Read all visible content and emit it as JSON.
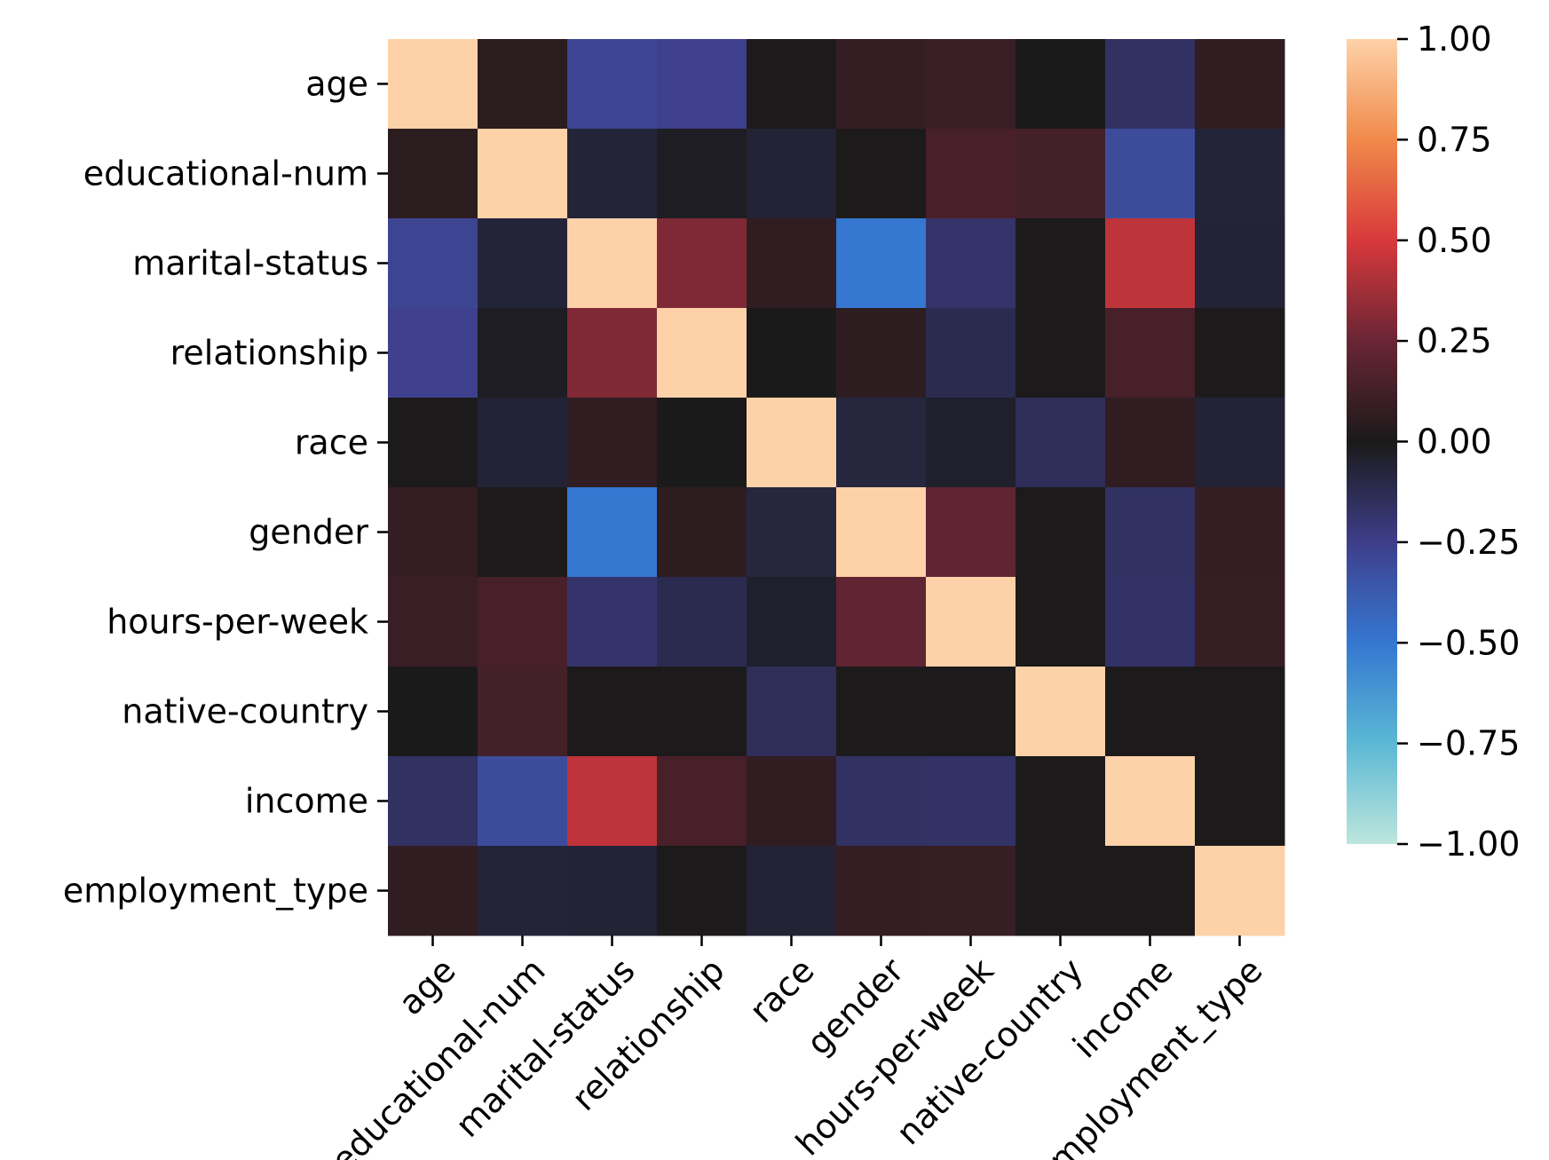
{
  "chart_data": {
    "type": "heatmap",
    "title": "",
    "xlabel": "",
    "ylabel": "",
    "rows": [
      "age",
      "educational-num",
      "marital-status",
      "relationship",
      "race",
      "gender",
      "hours-per-week",
      "native-country",
      "income",
      "employment_type"
    ],
    "columns": [
      "age",
      "educational-num",
      "marital-status",
      "relationship",
      "race",
      "gender",
      "hours-per-week",
      "native-country",
      "income",
      "employment_type"
    ],
    "values": [
      [
        1.0,
        0.05,
        -0.28,
        -0.26,
        0.01,
        0.08,
        0.1,
        0.0,
        -0.16,
        0.07
      ],
      [
        0.05,
        1.0,
        -0.07,
        -0.02,
        -0.06,
        0.01,
        0.14,
        0.13,
        -0.31,
        -0.07
      ],
      [
        -0.28,
        -0.07,
        1.0,
        0.3,
        0.07,
        -0.5,
        -0.18,
        0.01,
        0.44,
        -0.06
      ],
      [
        -0.26,
        -0.02,
        0.3,
        1.0,
        0.0,
        0.06,
        -0.12,
        0.01,
        0.14,
        0.01
      ],
      [
        0.01,
        -0.06,
        0.07,
        0.0,
        1.0,
        -0.08,
        -0.04,
        -0.14,
        0.07,
        -0.06
      ],
      [
        0.08,
        0.01,
        -0.5,
        0.06,
        -0.08,
        1.0,
        0.22,
        0.01,
        -0.16,
        0.08
      ],
      [
        0.1,
        0.14,
        -0.18,
        -0.12,
        -0.04,
        0.22,
        1.0,
        0.01,
        -0.17,
        0.09
      ],
      [
        0.0,
        0.13,
        0.01,
        0.01,
        -0.14,
        0.01,
        0.01,
        1.0,
        0.01,
        0.01
      ],
      [
        -0.16,
        -0.31,
        0.44,
        0.14,
        0.07,
        -0.16,
        -0.17,
        0.01,
        1.0,
        0.01
      ],
      [
        0.07,
        -0.07,
        -0.06,
        0.01,
        -0.06,
        0.08,
        0.09,
        0.01,
        0.01,
        1.0
      ]
    ],
    "colorbar": {
      "min": -1.0,
      "max": 1.0,
      "ticks": [
        "1.00",
        "0.75",
        "0.50",
        "0.25",
        "0.00",
        "−0.25",
        "−0.50",
        "−0.75",
        "−1.00"
      ],
      "tick_values": [
        1.0,
        0.75,
        0.5,
        0.25,
        0.0,
        -0.25,
        -0.5,
        -0.75,
        -1.0
      ],
      "colormap": "icefire"
    },
    "grid": false,
    "legend": "colorbar-right"
  }
}
